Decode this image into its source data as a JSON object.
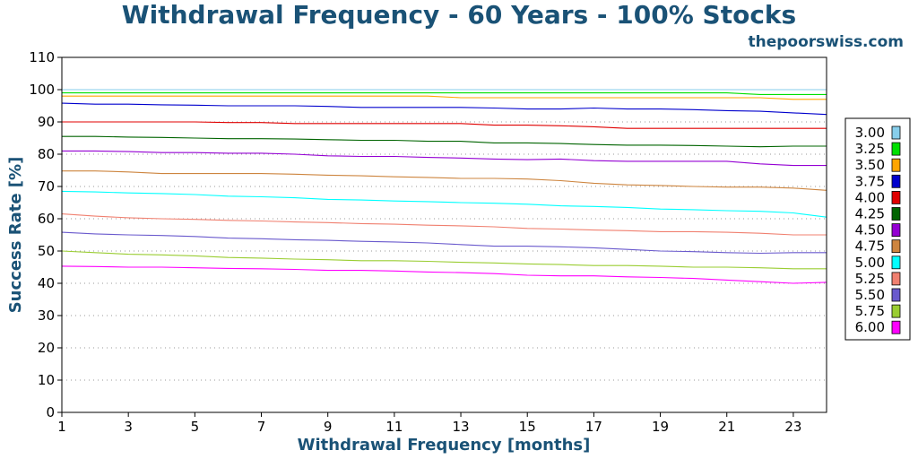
{
  "chart_data": {
    "type": "line",
    "title": "Withdrawal Frequency - 60 Years - 100% Stocks",
    "watermark": "thepoorswiss.com",
    "xlabel": "Withdrawal Frequency [months]",
    "ylabel": "Success Rate [%]",
    "xlim": [
      1,
      24
    ],
    "ylim": [
      0,
      110
    ],
    "xticks": [
      1,
      3,
      5,
      7,
      9,
      11,
      13,
      15,
      17,
      19,
      21,
      23
    ],
    "yticks": [
      0,
      10,
      20,
      30,
      40,
      50,
      60,
      70,
      80,
      90,
      100,
      110
    ],
    "grid": "horizontal dotted",
    "legend_position": "right",
    "x": [
      1,
      2,
      3,
      4,
      5,
      6,
      7,
      8,
      9,
      10,
      11,
      12,
      13,
      14,
      15,
      16,
      17,
      18,
      19,
      20,
      21,
      22,
      23,
      24
    ],
    "series": [
      {
        "name": "3.00",
        "color": "#87ceeb",
        "values": [
          100,
          100,
          100,
          100,
          100,
          100,
          100,
          100,
          100,
          100,
          100,
          100,
          100,
          100,
          100,
          100,
          100,
          100,
          100,
          100,
          100,
          100,
          100,
          100
        ]
      },
      {
        "name": "3.25",
        "color": "#00e000",
        "values": [
          99,
          99,
          99,
          99,
          99,
          99,
          99,
          99,
          99,
          99,
          99,
          99,
          99,
          99,
          99,
          99,
          99,
          99,
          99,
          99,
          99,
          98.5,
          98.5,
          98.5
        ]
      },
      {
        "name": "3.50",
        "color": "#ffa500",
        "values": [
          98,
          98,
          98,
          98,
          98,
          98,
          98,
          98,
          98,
          98,
          98,
          98,
          97.5,
          97.5,
          97.5,
          97.5,
          97.5,
          97.5,
          97.5,
          97.5,
          97.5,
          97.5,
          97,
          97
        ]
      },
      {
        "name": "3.75",
        "color": "#0000cd",
        "values": [
          95.8,
          95.5,
          95.5,
          95.3,
          95.2,
          95,
          95,
          95,
          94.8,
          94.5,
          94.5,
          94.5,
          94.5,
          94.3,
          94,
          94,
          94.3,
          94,
          94,
          93.8,
          93.5,
          93.3,
          92.8,
          92.3
        ]
      },
      {
        "name": "4.00",
        "color": "#e00000",
        "values": [
          90,
          90,
          90,
          90,
          90,
          89.8,
          89.8,
          89.5,
          89.5,
          89.5,
          89.5,
          89.5,
          89.5,
          89,
          89,
          88.8,
          88.5,
          88,
          88,
          88,
          88,
          88,
          88,
          88
        ]
      },
      {
        "name": "4.25",
        "color": "#006400",
        "values": [
          85.5,
          85.5,
          85.3,
          85.2,
          85,
          84.8,
          84.8,
          84.7,
          84.5,
          84.3,
          84.3,
          84,
          84,
          83.5,
          83.5,
          83.3,
          83,
          82.8,
          82.8,
          82.7,
          82.5,
          82.3,
          82.5,
          82.5
        ]
      },
      {
        "name": "4.50",
        "color": "#9400d3",
        "values": [
          81,
          81,
          80.8,
          80.5,
          80.5,
          80.3,
          80.3,
          80,
          79.5,
          79.3,
          79.3,
          79,
          78.8,
          78.5,
          78.3,
          78.5,
          78,
          77.8,
          77.8,
          77.8,
          77.8,
          77,
          76.5,
          76.5
        ]
      },
      {
        "name": "4.75",
        "color": "#cd853f",
        "values": [
          74.8,
          74.8,
          74.5,
          74,
          74,
          74,
          74,
          73.8,
          73.5,
          73.3,
          73,
          72.8,
          72.5,
          72.5,
          72.3,
          71.8,
          71,
          70.5,
          70.3,
          70,
          69.8,
          69.8,
          69.5,
          68.8
        ]
      },
      {
        "name": "5.00",
        "color": "#00ffff",
        "values": [
          68.5,
          68.3,
          68,
          67.8,
          67.5,
          67,
          66.8,
          66.5,
          66,
          65.8,
          65.5,
          65.3,
          65,
          64.8,
          64.5,
          64,
          63.8,
          63.5,
          63,
          62.8,
          62.5,
          62.3,
          61.8,
          60.5
        ]
      },
      {
        "name": "5.25",
        "color": "#f08070",
        "values": [
          61.5,
          60.8,
          60.3,
          60,
          59.8,
          59.5,
          59.3,
          59,
          58.8,
          58.5,
          58.3,
          58,
          57.8,
          57.5,
          57,
          56.8,
          56.5,
          56.3,
          56,
          56,
          55.8,
          55.5,
          55,
          55
        ]
      },
      {
        "name": "5.50",
        "color": "#6a5acd",
        "values": [
          55.8,
          55.3,
          55,
          54.8,
          54.5,
          54,
          53.8,
          53.5,
          53.3,
          53,
          52.8,
          52.5,
          52,
          51.5,
          51.5,
          51.3,
          51,
          50.5,
          50,
          49.8,
          49.5,
          49.3,
          49.5,
          49.5
        ]
      },
      {
        "name": "5.75",
        "color": "#9acd32",
        "values": [
          50,
          49.5,
          49,
          48.8,
          48.5,
          48,
          47.8,
          47.5,
          47.3,
          47,
          47,
          46.8,
          46.5,
          46.3,
          46,
          45.8,
          45.5,
          45.5,
          45.3,
          45,
          45,
          44.8,
          44.5,
          44.5
        ]
      },
      {
        "name": "6.00",
        "color": "#ff00ff",
        "values": [
          45.3,
          45.2,
          45,
          45,
          44.8,
          44.6,
          44.5,
          44.3,
          44,
          44,
          43.8,
          43.5,
          43.3,
          43,
          42.5,
          42.3,
          42.3,
          42,
          41.8,
          41.5,
          41,
          40.5,
          40,
          40.3
        ]
      }
    ]
  }
}
